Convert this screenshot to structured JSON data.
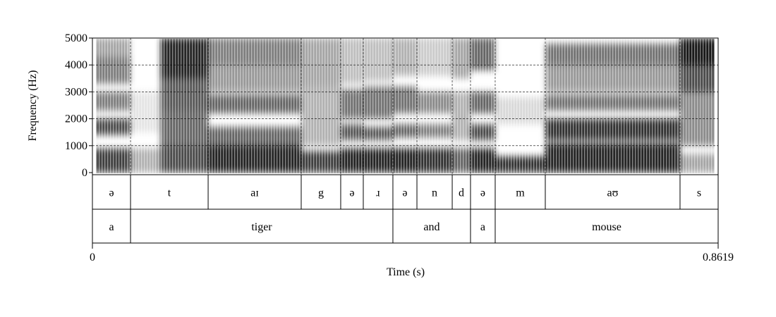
{
  "chart_data": {
    "type": "heatmap",
    "xlabel": "Time (s)",
    "ylabel": "Frequency (Hz)",
    "xlim": [
      0,
      0.8619
    ],
    "ylim": [
      0,
      5000
    ],
    "x_tick_labels": [
      "0",
      "0.8619"
    ],
    "y_ticks": [
      0,
      1000,
      2000,
      3000,
      4000,
      5000
    ],
    "y_tick_labels": [
      "0",
      "1000",
      "2000",
      "3000",
      "4000",
      "5000"
    ],
    "grid": true,
    "colormap": "grayscale (dark = high energy)",
    "tiers": [
      {
        "intervals": [
          {
            "start": 0,
            "end": 0.0525,
            "label": "ə"
          },
          {
            "start": 0.0525,
            "end": 0.1594,
            "label": "t"
          },
          {
            "start": 0.1594,
            "end": 0.2876,
            "label": "aɪ"
          },
          {
            "start": 0.2876,
            "end": 0.342,
            "label": "g"
          },
          {
            "start": 0.342,
            "end": 0.3731,
            "label": "ə"
          },
          {
            "start": 0.3731,
            "end": 0.4139,
            "label": "ɹ"
          },
          {
            "start": 0.4139,
            "end": 0.447,
            "label": "ə"
          },
          {
            "start": 0.447,
            "end": 0.4956,
            "label": "n"
          },
          {
            "start": 0.4956,
            "end": 0.5208,
            "label": "d"
          },
          {
            "start": 0.5208,
            "end": 0.5548,
            "label": "ə"
          },
          {
            "start": 0.5548,
            "end": 0.6238,
            "label": "m"
          },
          {
            "start": 0.6238,
            "end": 0.8094,
            "label": "aʊ"
          },
          {
            "start": 0.8094,
            "end": 0.8619,
            "label": "s"
          }
        ]
      },
      {
        "intervals": [
          {
            "start": 0,
            "end": 0.0525,
            "label": "a"
          },
          {
            "start": 0.0525,
            "end": 0.4139,
            "label": "tiger"
          },
          {
            "start": 0.4139,
            "end": 0.5208,
            "label": "and"
          },
          {
            "start": 0.5208,
            "end": 0.5548,
            "label": "a"
          },
          {
            "start": 0.5548,
            "end": 0.8619,
            "label": "mouse"
          }
        ]
      }
    ]
  }
}
